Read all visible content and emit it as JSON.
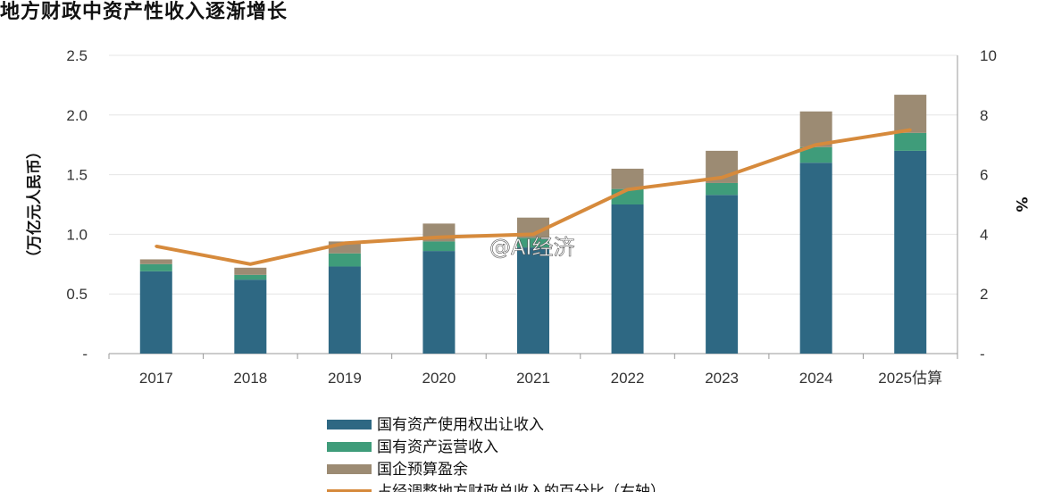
{
  "chart_data": {
    "type": "bar",
    "title": "地方财政中资产性收入逐渐增长",
    "ylabel": "（万亿元人民币）",
    "y2label": "%",
    "ylim": [
      0,
      2.5
    ],
    "y2lim": [
      0,
      10
    ],
    "yticks": [
      "-",
      "0.5",
      "1.0",
      "1.5",
      "2.0",
      "2.5"
    ],
    "y2ticks": [
      "-",
      "2",
      "4",
      "6",
      "8",
      "10"
    ],
    "categories": [
      "2017",
      "2018",
      "2019",
      "2020",
      "2021",
      "2022",
      "2023",
      "2024",
      "2025估算"
    ],
    "stacked": true,
    "series": [
      {
        "name": "国有资产使用权出让收入",
        "type": "bar",
        "color": "#2e6883",
        "values": [
          0.69,
          0.62,
          0.73,
          0.86,
          0.89,
          1.25,
          1.33,
          1.6,
          1.7
        ]
      },
      {
        "name": "国有资产运营收入",
        "type": "bar",
        "color": "#3f9c7a",
        "values": [
          0.06,
          0.04,
          0.11,
          0.08,
          0.08,
          0.13,
          0.1,
          0.13,
          0.15
        ]
      },
      {
        "name": "国企预算盈余",
        "type": "bar",
        "color": "#9c8b73",
        "values": [
          0.04,
          0.06,
          0.1,
          0.15,
          0.17,
          0.17,
          0.27,
          0.3,
          0.32
        ]
      },
      {
        "name": "占经调整地方财政总收入的百分比（右轴）",
        "type": "line",
        "axis": "right",
        "color": "#d68a3c",
        "values": [
          3.6,
          3.0,
          3.7,
          3.9,
          4.0,
          5.5,
          5.9,
          7.0,
          7.5
        ]
      }
    ],
    "grid": true,
    "legend_position": "bottom"
  },
  "watermark": "@AI经济"
}
